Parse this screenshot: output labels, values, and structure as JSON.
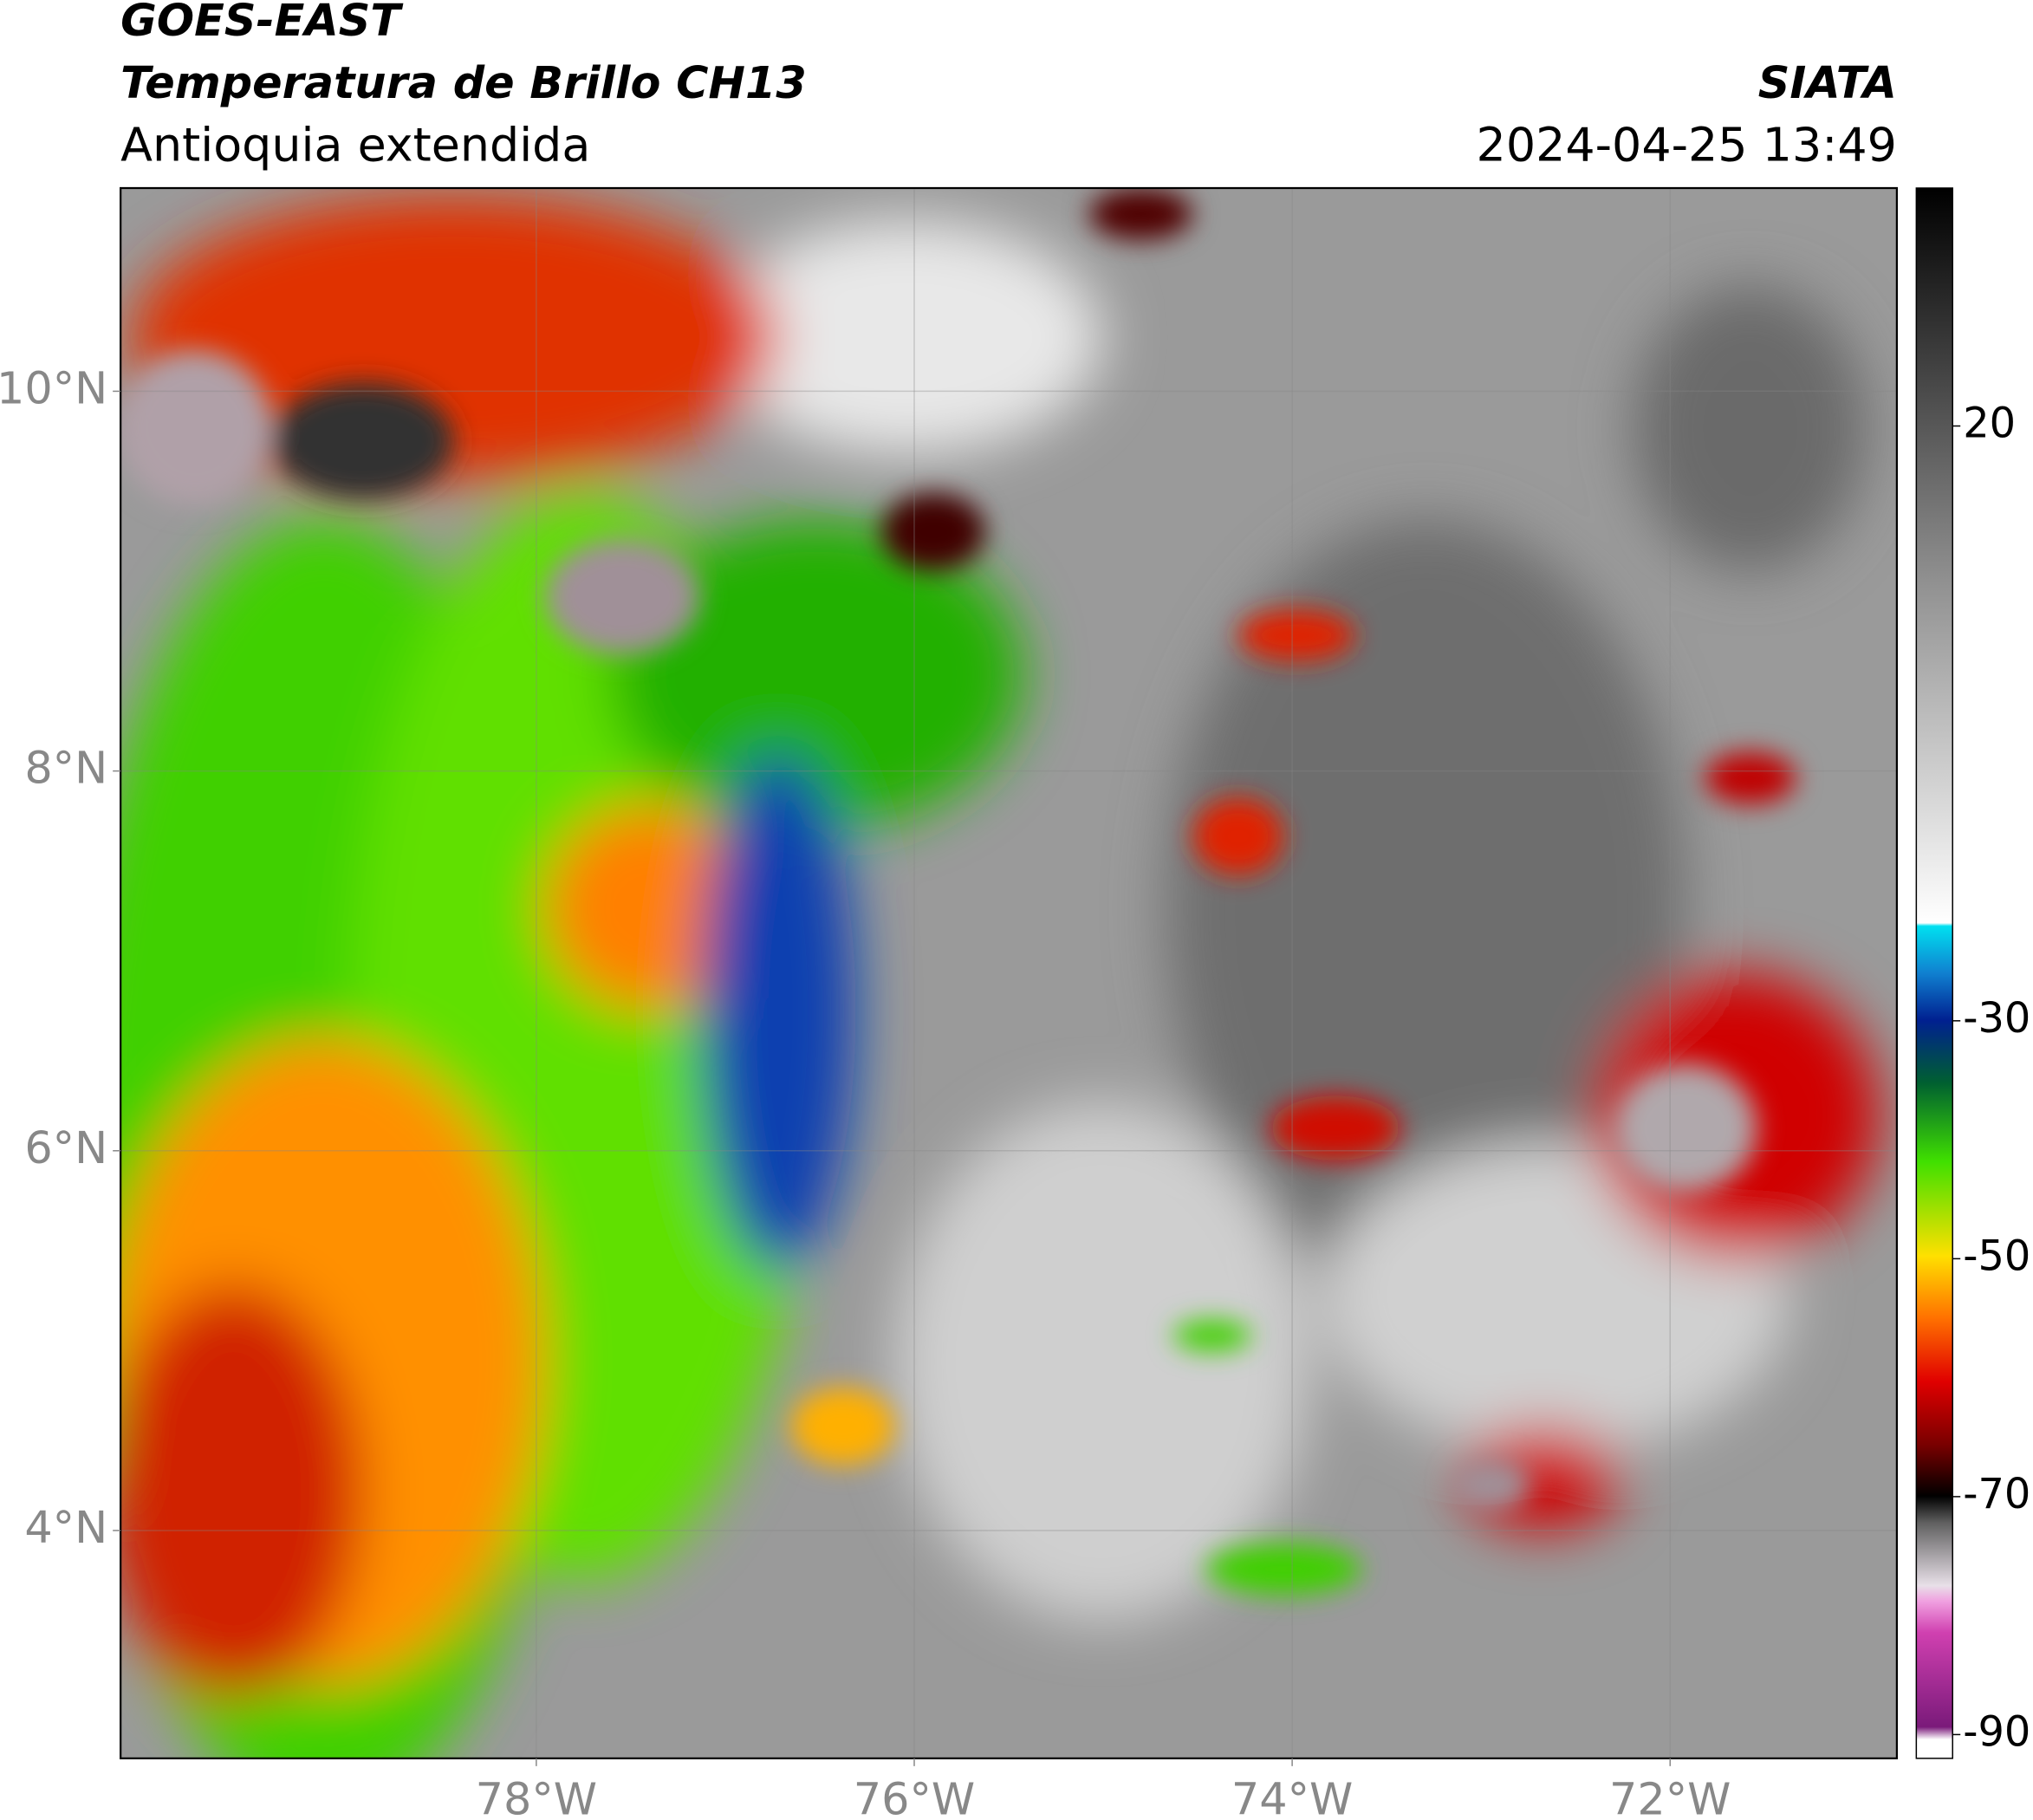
{
  "header": {
    "satellite": "GOES-EAST",
    "product": "Temperatura de Brillo CH13",
    "region": "Antioquia extendida",
    "organization": "SIATA",
    "datetime": "2024-04-25 13:49"
  },
  "map": {
    "xlim": [
      -80.2,
      -70.8
    ],
    "ylim": [
      2.8,
      11.07
    ],
    "xticks": [
      {
        "value": -78,
        "label": "78°W"
      },
      {
        "value": -76,
        "label": "76°W"
      },
      {
        "value": -74,
        "label": "74°W"
      },
      {
        "value": -72,
        "label": "72°W"
      }
    ],
    "yticks": [
      {
        "value": 4,
        "label": "4°N"
      },
      {
        "value": 6,
        "label": "6°N"
      },
      {
        "value": 8,
        "label": "8°N"
      },
      {
        "value": 10,
        "label": "10°N"
      }
    ]
  },
  "colorbar": {
    "lim": [
      -92,
      40
    ],
    "ticks": [
      20,
      -30,
      -50,
      -70,
      -90
    ]
  }
}
